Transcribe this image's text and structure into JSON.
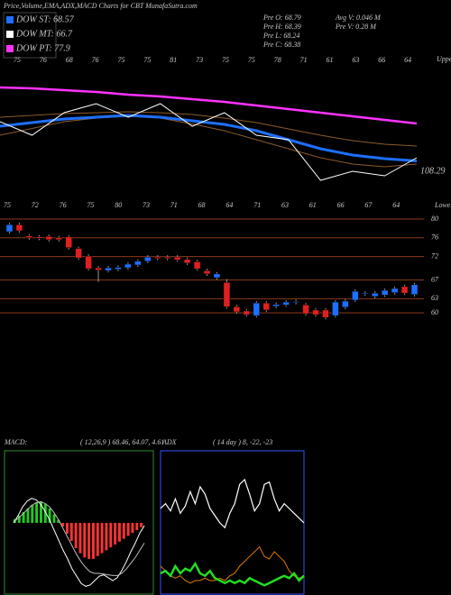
{
  "header": {
    "title": "Price,Volume,EMA,ADX,MACD Charts for CBT MunafaSutra.com",
    "legend": [
      {
        "name": "DOW ST: 68.57",
        "color": "#1e6fff"
      },
      {
        "name": "DOW MT: 66.7",
        "color": "#ffffff"
      },
      {
        "name": "DOW PT: 77.9",
        "color": "#ff33ff"
      }
    ],
    "stats": [
      "Pre  O: 68.79",
      "Pre  H: 68.39",
      "Pre  L: 68.24",
      "Pre  C: 68.38",
      "Avg V: 0.046  M",
      "Pre  V: 0.28  M"
    ]
  },
  "chart_data": [
    {
      "type": "line",
      "annotations": [
        "Upper",
        "Lower",
        "108.29"
      ],
      "top_labels": [
        "75",
        "76",
        "68",
        "76",
        "75",
        "75",
        "81",
        "73",
        "75",
        "75",
        "78",
        "71",
        "61",
        "63",
        "66",
        "64"
      ],
      "bottom_labels": [
        "75",
        "72",
        "76",
        "75",
        "80",
        "73",
        "71",
        "68",
        "64",
        "71",
        "63",
        "61",
        "66",
        "67",
        "64"
      ],
      "ylim": [
        100,
        130
      ],
      "series": [
        {
          "name": "EMA long",
          "color": "#ff33ff",
          "width": 2.5,
          "values": [
            124.6,
            124.4,
            124.0,
            123.6,
            123.0,
            122.6,
            122.0,
            121.4,
            120.6,
            119.8,
            119.0,
            118.2,
            117.4,
            116.6
          ]
        },
        {
          "name": "EMA mid",
          "color": "#8b5a2b",
          "width": 1,
          "values": [
            118,
            118.4,
            118.8,
            119,
            119.2,
            119,
            118.6,
            117.8,
            116.8,
            115.4,
            114,
            112.8,
            112,
            111.6
          ]
        },
        {
          "name": "EMA short",
          "color": "#8b5a2b",
          "width": 1,
          "values": [
            114,
            115.5,
            117,
            117.8,
            118.2,
            117.8,
            116.5,
            115,
            113,
            111,
            109,
            107.6,
            107,
            107.6
          ]
        },
        {
          "name": "EMA blue",
          "color": "#1e6fff",
          "width": 3,
          "values": [
            116,
            116.8,
            117.6,
            118,
            118.4,
            118,
            117.2,
            116.4,
            115,
            113,
            111,
            109.6,
            108.8,
            108.29
          ]
        },
        {
          "name": "Price",
          "color": "#ffffff",
          "width": 1,
          "values": [
            117,
            114,
            119,
            121,
            118,
            121,
            116,
            119,
            114,
            113,
            104,
            106,
            105,
            109
          ]
        }
      ]
    },
    {
      "type": "candlestick",
      "ylim": [
        56,
        82
      ],
      "yticks": [
        80,
        76,
        72,
        67,
        63,
        60
      ],
      "grid": true,
      "grid_color": "#8b3a1a",
      "up_color": "#1e6fff",
      "down_color": "#e02020",
      "open": [
        77.3,
        78.8,
        76.4,
        76.2,
        76.3,
        76.0,
        76.2,
        73.7,
        72.1,
        69.6,
        69.0,
        69.3,
        69.6,
        70.2,
        71.0,
        71.9,
        71.9,
        71.9,
        71.4,
        70.9,
        69.0,
        67.5,
        66.5,
        61.3,
        60.4,
        59.4,
        62.1,
        61.4,
        61.7,
        62.2,
        61.7,
        60.6,
        60.6,
        59.4,
        61.2,
        62.7,
        64.0,
        63.5,
        63.8,
        64.3,
        65.6,
        63.9
      ],
      "high": [
        79.2,
        79.2,
        76.8,
        76.6,
        76.7,
        76.4,
        76.6,
        74.1,
        72.5,
        70.0,
        70.0,
        70.1,
        70.8,
        71.4,
        72.3,
        72.3,
        72.3,
        72.3,
        71.8,
        71.3,
        69.4,
        68.7,
        67.2,
        61.7,
        60.8,
        62.5,
        62.5,
        62.2,
        62.7,
        62.8,
        62.1,
        61.0,
        61.0,
        62.7,
        62.9,
        65.0,
        64.6,
        64.6,
        65.2,
        65.6,
        66.0,
        66.4
      ],
      "low": [
        76.9,
        77.1,
        75.6,
        75.5,
        75.2,
        75.2,
        73.5,
        71.3,
        69.0,
        66.6,
        68.6,
        68.9,
        69.2,
        69.8,
        70.6,
        71.2,
        71.2,
        70.9,
        70.2,
        69.0,
        67.9,
        67.1,
        60.9,
        59.8,
        59.2,
        59.0,
        60.2,
        61.0,
        61.3,
        61.8,
        59.4,
        59.2,
        58.6,
        59.0,
        60.8,
        62.3,
        63.6,
        63.1,
        63.4,
        63.9,
        63.8,
        63.5
      ],
      "close": [
        78.8,
        77.5,
        76.0,
        75.9,
        75.6,
        75.6,
        73.9,
        71.7,
        69.4,
        69.1,
        69.6,
        69.7,
        70.4,
        71.0,
        71.9,
        71.6,
        71.6,
        71.3,
        70.6,
        69.4,
        68.3,
        68.3,
        61.3,
        60.2,
        59.6,
        62.1,
        60.6,
        61.8,
        62.3,
        62.4,
        59.8,
        59.6,
        59.0,
        62.3,
        62.5,
        64.6,
        64.2,
        64.2,
        64.8,
        65.2,
        64.2,
        66.0
      ]
    },
    {
      "type": "macd",
      "title": "MACD:",
      "subtitle": "( 12,26,9 ) 68.46, 64.07, 4.61",
      "border_color": "#2e8b2e",
      "ylim": [
        -10,
        10
      ],
      "histogram": [
        0.5,
        1,
        1.5,
        2,
        2.5,
        2.8,
        3,
        2.6,
        2,
        1.2,
        0.4,
        -0.5,
        -1.5,
        -2.5,
        -3.5,
        -4.2,
        -4.8,
        -5,
        -5,
        -4.6,
        -4.2,
        -3.8,
        -3.4,
        -3,
        -2.6,
        -2.2,
        -1.8,
        -1.4,
        -1,
        -0.6
      ],
      "up_color": "#22cc22",
      "down_color": "#ff3333",
      "series": [
        {
          "name": "MACD",
          "color": "#ffffff",
          "values": [
            0,
            1,
            2.2,
            3,
            3.4,
            3.2,
            2.6,
            1.6,
            0.4,
            -1,
            -2.4,
            -3.8,
            -5,
            -6.4,
            -7.4,
            -8.4,
            -8.8,
            -8.6,
            -8,
            -7.4,
            -7.2,
            -7.6,
            -8,
            -7.6,
            -6.6,
            -5.4,
            -4,
            -2.8,
            -1.4,
            -0.4
          ]
        },
        {
          "name": "Signal",
          "color": "#bbbbbb",
          "values": [
            0.2,
            0.6,
            1.2,
            1.8,
            2.4,
            2.8,
            2.9,
            2.7,
            2.2,
            1.4,
            0.4,
            -0.8,
            -2,
            -3.2,
            -4.4,
            -5.4,
            -6.2,
            -6.8,
            -7,
            -7,
            -7.1,
            -7.2,
            -7.3,
            -7.3,
            -7,
            -6.4,
            -5.6,
            -4.8,
            -3.8,
            -2.8
          ]
        }
      ]
    },
    {
      "type": "line",
      "title": "ADX",
      "subtitle": "( 14 day ) 8, -22, -23",
      "border_color": "#3355ff",
      "ylim": [
        0,
        60
      ],
      "series": [
        {
          "name": "ADX",
          "color": "#ffffff",
          "width": 1.2,
          "values": [
            36,
            38,
            35,
            40,
            34,
            37,
            43,
            38,
            45,
            42,
            36,
            33,
            30,
            28,
            34,
            38,
            46,
            48,
            42,
            35,
            38,
            46,
            47,
            40,
            35,
            38,
            36,
            34,
            32,
            30
          ]
        },
        {
          "name": "DI-",
          "color": "#e07b00",
          "width": 1,
          "values": [
            12,
            10,
            8,
            7,
            8,
            6,
            5,
            6,
            6,
            7,
            6,
            6,
            7,
            6,
            8,
            9,
            12,
            14,
            16,
            18,
            20,
            16,
            15,
            18,
            16,
            14,
            10,
            8,
            7,
            8
          ]
        },
        {
          "name": "DI+",
          "color": "#22dd22",
          "width": 2.5,
          "values": [
            9,
            10,
            8,
            12,
            9,
            11,
            10,
            13,
            9,
            8,
            10,
            7,
            6,
            5,
            6,
            5,
            6,
            5,
            7,
            6,
            5,
            4,
            5,
            6,
            7,
            8,
            7,
            9,
            6,
            8
          ]
        }
      ]
    }
  ]
}
